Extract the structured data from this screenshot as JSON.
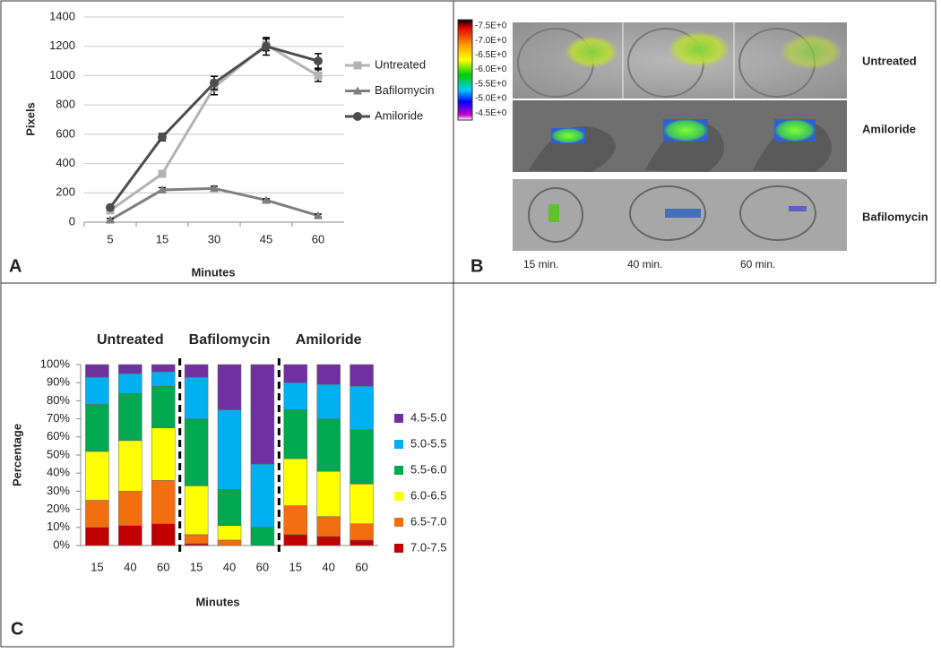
{
  "chart_data": [
    {
      "type": "line",
      "panel_label": "A",
      "x_label": "Minutes",
      "y_label": "Pixels",
      "categories": [
        "5",
        "15",
        "30",
        "45",
        "60"
      ],
      "ylim": [
        0,
        1400
      ],
      "yticks": [
        0,
        200,
        400,
        600,
        800,
        1000,
        1200,
        1400
      ],
      "grid": true,
      "series": [
        {
          "name": "Untreated",
          "color": "#b3b3b3",
          "marker": "square",
          "values": [
            80,
            330,
            920,
            1210,
            1000
          ],
          "errors": [
            15,
            20,
            50,
            40,
            40
          ]
        },
        {
          "name": "Bafilomycin",
          "color": "#7f7f7f",
          "marker": "triangle",
          "values": [
            15,
            220,
            230,
            150,
            45
          ],
          "errors": [
            10,
            15,
            15,
            10,
            10
          ]
        },
        {
          "name": "Amiloride",
          "color": "#4d4d4d",
          "marker": "circle",
          "values": [
            100,
            580,
            950,
            1200,
            1100
          ],
          "errors": [
            10,
            25,
            45,
            60,
            50
          ]
        }
      ]
    },
    {
      "type": "stacked_bar",
      "panel_label": "C",
      "x_label": "Minutes",
      "y_label": "Percentage",
      "groups": [
        "Untreated",
        "Bafilomycin",
        "Amiloride"
      ],
      "categories": [
        "15",
        "40",
        "60",
        "15",
        "40",
        "60",
        "15",
        "40",
        "60"
      ],
      "ylim": [
        0,
        100
      ],
      "yticks": [
        {
          "value": 0,
          "label": "0%"
        },
        {
          "value": 10,
          "label": "10%"
        },
        {
          "value": 20,
          "label": "20%"
        },
        {
          "value": 30,
          "label": "30%"
        },
        {
          "value": 40,
          "label": "40%"
        },
        {
          "value": 50,
          "label": "50%"
        },
        {
          "value": 60,
          "label": "60%"
        },
        {
          "value": 70,
          "label": "70%"
        },
        {
          "value": 80,
          "label": "80%"
        },
        {
          "value": 90,
          "label": "90%"
        },
        {
          "value": 100,
          "label": "100%"
        }
      ],
      "series": [
        {
          "name": "7.0-7.5",
          "color": "#c00000",
          "values": [
            10,
            11,
            12,
            1,
            0,
            0,
            6,
            5,
            3
          ]
        },
        {
          "name": "6.5-7.0",
          "color": "#f26f10",
          "values": [
            15,
            19,
            24,
            5,
            3,
            0,
            16,
            11,
            9
          ]
        },
        {
          "name": "6.0-6.5",
          "color": "#ffff00",
          "values": [
            27,
            28,
            29,
            27,
            8,
            0,
            26,
            25,
            22
          ]
        },
        {
          "name": "5.5-6.0",
          "color": "#00a84f",
          "values": [
            26,
            26,
            23,
            37,
            20,
            10,
            27,
            29,
            30
          ]
        },
        {
          "name": "5.0-5.5",
          "color": "#00b0f0",
          "values": [
            15,
            11,
            8,
            23,
            44,
            35,
            15,
            19,
            24
          ]
        },
        {
          "name": "4.5-5.0",
          "color": "#7030a0",
          "values": [
            7,
            5,
            4,
            7,
            25,
            55,
            10,
            11,
            12
          ]
        }
      ]
    }
  ],
  "panel_b": {
    "panel_label": "B",
    "colorbar_labels": [
      "-7.5E+0",
      "-7.0E+0",
      "-6.5E+0",
      "-6.0E+0",
      "-5.5E+0",
      "-5.0E+0",
      "-4.5E+0"
    ],
    "rows": [
      "Untreated",
      "Amiloride",
      "Bafilomycin"
    ],
    "time_labels": [
      "15 min.",
      "40 min.",
      "60 min."
    ]
  }
}
